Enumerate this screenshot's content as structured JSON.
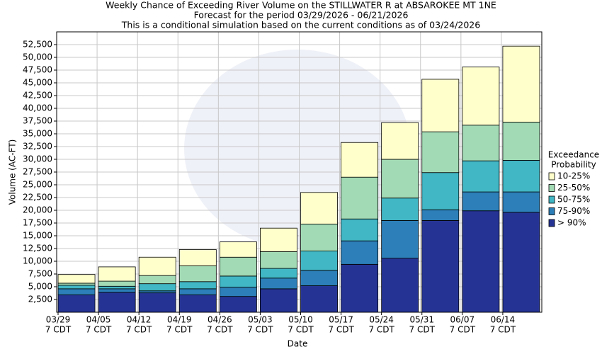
{
  "chart_data": {
    "type": "stacked_bar",
    "title": [
      "Weekly Chance of Exceeding River Volume on the STILLWATER R at ABSAROKEE MT 1NE",
      "Forecast for the period 03/29/2026 - 06/21/2026",
      "This is a conditional simulation based on the current conditions as of 03/24/2026"
    ],
    "x_label": "Date",
    "y_label": "Volume (AC-FT)",
    "legend_title": [
      "Exceedance",
      "Probability"
    ],
    "categories": [
      [
        "03/29",
        "7 CDT"
      ],
      [
        "04/05",
        "7 CDT"
      ],
      [
        "04/12",
        "7 CDT"
      ],
      [
        "04/19",
        "7 CDT"
      ],
      [
        "04/26",
        "7 CDT"
      ],
      [
        "05/03",
        "7 CDT"
      ],
      [
        "05/10",
        "7 CDT"
      ],
      [
        "05/17",
        "7 CDT"
      ],
      [
        "05/24",
        "7 CDT"
      ],
      [
        "05/31",
        "7 CDT"
      ],
      [
        "06/07",
        "7 CDT"
      ],
      [
        "06/14",
        "7 CDT"
      ]
    ],
    "series": [
      {
        "name": "> 90%",
        "color": "#253494",
        "values": [
          3400,
          3900,
          3800,
          3400,
          3100,
          4600,
          5200,
          9400,
          10600,
          18000,
          19900,
          19600
        ]
      },
      {
        "name": "75-90%",
        "color": "#2c7fb8",
        "values": [
          1200,
          700,
          400,
          1200,
          1800,
          2100,
          3000,
          4600,
          7400,
          2100,
          3700,
          4000
        ]
      },
      {
        "name": "50-75%",
        "color": "#41b6c4",
        "values": [
          700,
          500,
          1400,
          1400,
          2200,
          1900,
          3800,
          4300,
          4400,
          7300,
          6100,
          6200
        ]
      },
      {
        "name": "25-50%",
        "color": "#a1dab4",
        "values": [
          400,
          1000,
          1600,
          3100,
          3700,
          3300,
          5300,
          8200,
          7600,
          8000,
          7000,
          7500
        ]
      },
      {
        "name": "10-25%",
        "color": "#ffffcc",
        "values": [
          1700,
          2800,
          3600,
          3200,
          3000,
          4600,
          6200,
          6800,
          7200,
          10300,
          11400,
          14900
        ]
      }
    ],
    "ylim": [
      0,
      55000
    ],
    "yticks": [
      {
        "value": 2500,
        "label": "2,500"
      },
      {
        "value": 5000,
        "label": "5,000"
      },
      {
        "value": 7500,
        "label": "7,500"
      },
      {
        "value": 10000,
        "label": "10,000"
      },
      {
        "value": 12500,
        "label": "12,500"
      },
      {
        "value": 15000,
        "label": "15,000"
      },
      {
        "value": 17500,
        "label": "17,500"
      },
      {
        "value": 20000,
        "label": "20,000"
      },
      {
        "value": 22500,
        "label": "22,500"
      },
      {
        "value": 25000,
        "label": "25,000"
      },
      {
        "value": 27500,
        "label": "27,500"
      },
      {
        "value": 30000,
        "label": "30,000"
      },
      {
        "value": 32500,
        "label": "32,500"
      },
      {
        "value": 35000,
        "label": "35,000"
      },
      {
        "value": 37500,
        "label": "37,500"
      },
      {
        "value": 40000,
        "label": "40,000"
      },
      {
        "value": 42500,
        "label": "42,500"
      },
      {
        "value": 45000,
        "label": "45,000"
      },
      {
        "value": 47500,
        "label": "47,500"
      },
      {
        "value": 50000,
        "label": "50,000"
      },
      {
        "value": 52500,
        "label": "52,500"
      }
    ],
    "grid": true
  }
}
